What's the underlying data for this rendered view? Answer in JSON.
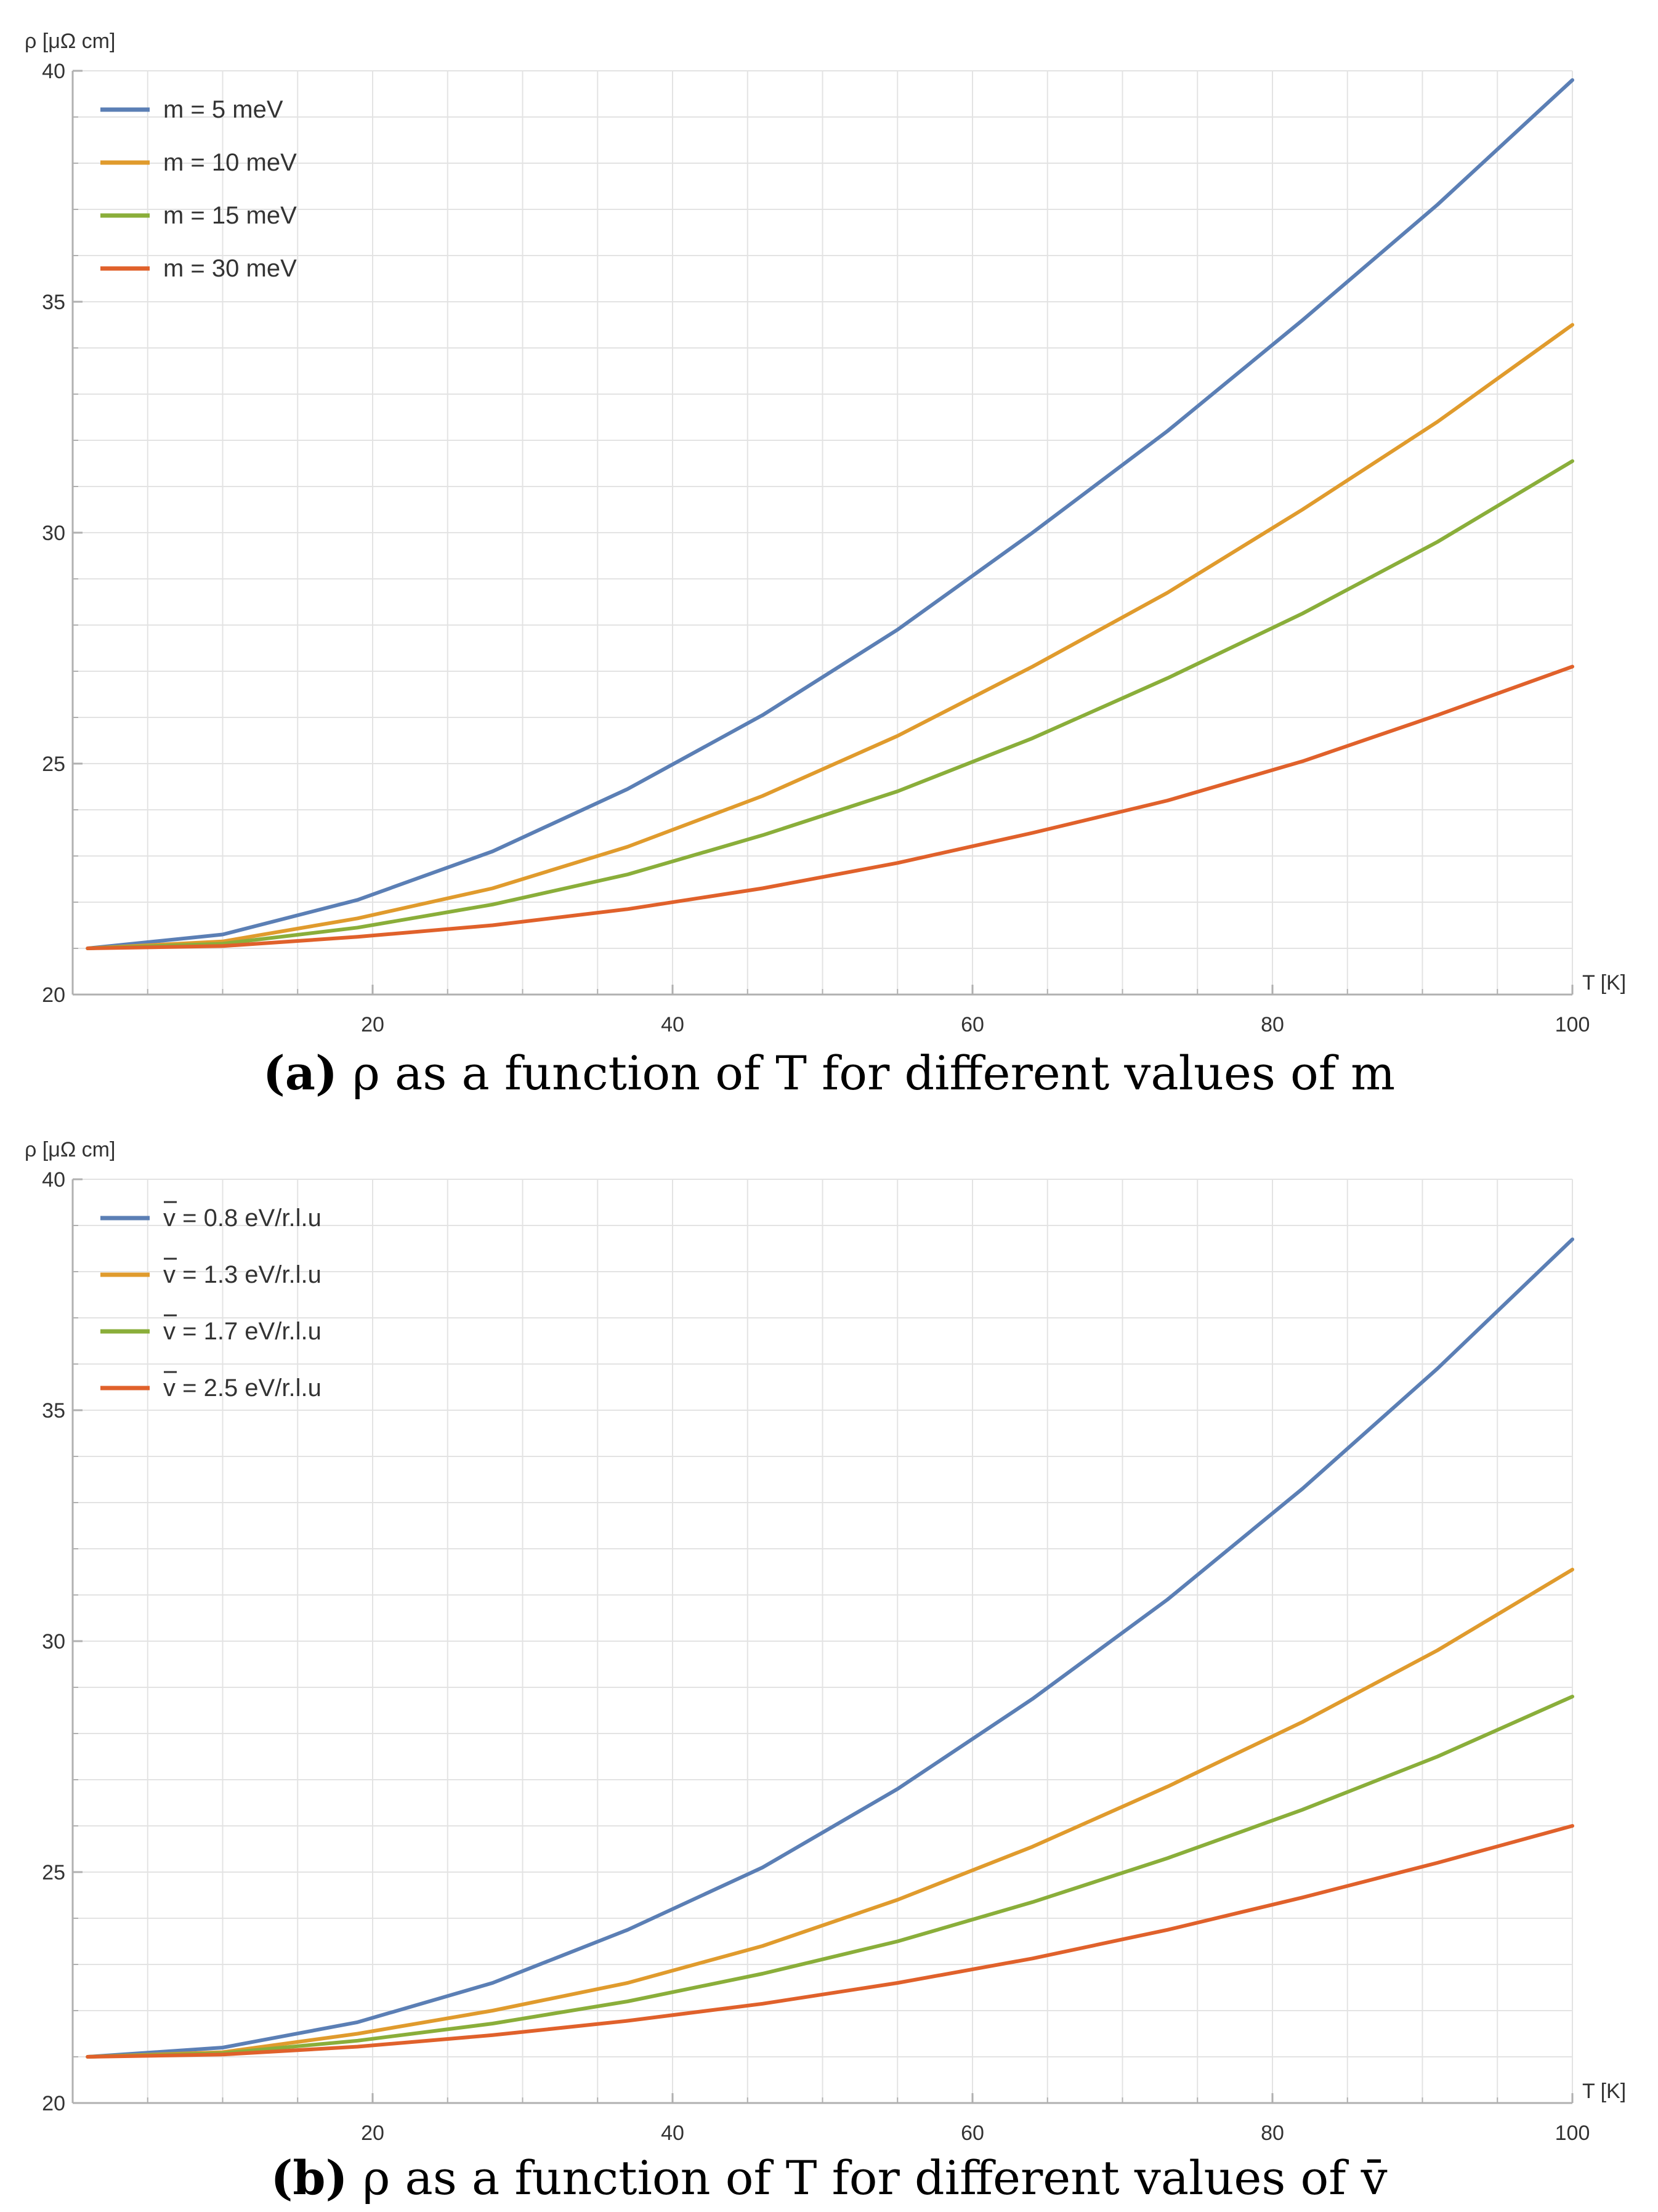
{
  "chart_data": [
    {
      "type": "line",
      "ylabel": "ρ [μΩ cm]",
      "xlabel": "T [K]",
      "xlim": [
        0,
        100
      ],
      "ylim": [
        20,
        40
      ],
      "xticks": [
        20,
        40,
        60,
        80,
        100
      ],
      "yticks": [
        20,
        25,
        30,
        35,
        40
      ],
      "grid": true,
      "legend_position": "top-left",
      "caption": {
        "label": "(a)",
        "text": "ρ as a function of T for different values of m"
      },
      "x": [
        1,
        10,
        19,
        28,
        37,
        46,
        55,
        64,
        73,
        82,
        91,
        100
      ],
      "series": [
        {
          "name": "m = 5 meV",
          "color": "#5b7fb5",
          "values": [
            21.0,
            21.3,
            22.05,
            23.1,
            24.45,
            26.05,
            27.9,
            30.0,
            32.2,
            34.6,
            37.1,
            39.8
          ]
        },
        {
          "name": "m = 10 meV",
          "color": "#e09b2d",
          "values": [
            21.0,
            21.15,
            21.65,
            22.3,
            23.2,
            24.3,
            25.6,
            27.1,
            28.7,
            30.5,
            32.4,
            34.5
          ]
        },
        {
          "name": "m = 15 meV",
          "color": "#8aae3a",
          "values": [
            21.0,
            21.1,
            21.45,
            21.95,
            22.6,
            23.45,
            24.4,
            25.55,
            26.85,
            28.25,
            29.8,
            31.55
          ]
        },
        {
          "name": "m = 30 meV",
          "color": "#e0612b",
          "values": [
            21.0,
            21.05,
            21.25,
            21.5,
            21.85,
            22.3,
            22.85,
            23.5,
            24.2,
            25.05,
            26.05,
            27.1
          ]
        }
      ]
    },
    {
      "type": "line",
      "ylabel": "ρ [μΩ cm]",
      "xlabel": "T [K]",
      "xlim": [
        0,
        100
      ],
      "ylim": [
        20,
        40
      ],
      "xticks": [
        20,
        40,
        60,
        80,
        100
      ],
      "yticks": [
        20,
        25,
        30,
        35,
        40
      ],
      "grid": true,
      "legend_position": "top-left",
      "caption": {
        "label": "(b)",
        "text": "ρ as a function of T for different values of v̄"
      },
      "x": [
        1,
        10,
        19,
        28,
        37,
        46,
        55,
        64,
        73,
        82,
        91,
        100
      ],
      "series": [
        {
          "name": "v = 0.8 eV/r.l.u",
          "color": "#5b7fb5",
          "values": [
            21.0,
            21.2,
            21.75,
            22.6,
            23.75,
            25.1,
            26.8,
            28.75,
            30.9,
            33.3,
            35.9,
            38.7
          ]
        },
        {
          "name": "v = 1.3 eV/r.l.u",
          "color": "#e09b2d",
          "values": [
            21.0,
            21.1,
            21.5,
            22.0,
            22.6,
            23.4,
            24.4,
            25.55,
            26.85,
            28.25,
            29.8,
            31.55
          ]
        },
        {
          "name": "v = 1.7 eV/r.l.u",
          "color": "#8aae3a",
          "values": [
            21.0,
            21.08,
            21.35,
            21.72,
            22.2,
            22.8,
            23.5,
            24.35,
            25.3,
            26.35,
            27.5,
            28.8
          ]
        },
        {
          "name": "v = 2.5 eV/r.l.u",
          "color": "#e0612b",
          "values": [
            21.0,
            21.05,
            21.22,
            21.47,
            21.78,
            22.15,
            22.6,
            23.13,
            23.75,
            24.45,
            25.2,
            26.0
          ]
        }
      ]
    }
  ]
}
